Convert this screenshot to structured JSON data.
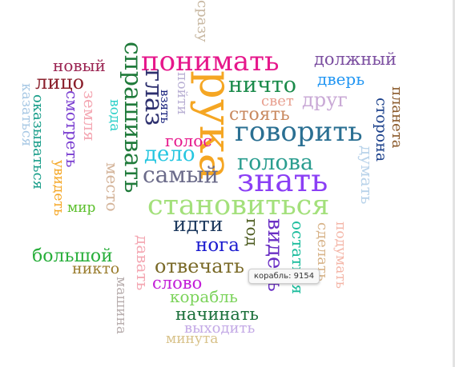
{
  "word_cloud": {
    "words": [
      {
        "text": "понимать",
        "color": "#e6178b",
        "orientation": "horizontal"
      },
      {
        "text": "рука",
        "color": "#f5a623",
        "orientation": "vertical"
      },
      {
        "text": "спрашивать",
        "color": "#1f7a3a",
        "orientation": "vertical"
      },
      {
        "text": "должный",
        "color": "#7b4ea0",
        "orientation": "horizontal"
      },
      {
        "text": "сразу",
        "color": "#c8b8a2",
        "orientation": "vertical"
      },
      {
        "text": "новый",
        "color": "#9b2452",
        "orientation": "horizontal"
      },
      {
        "text": "лицо",
        "color": "#8a1f2b",
        "orientation": "horizontal"
      },
      {
        "text": "казаться",
        "color": "#a7c8e4",
        "orientation": "vertical"
      },
      {
        "text": "оказываться",
        "color": "#1a9e8a",
        "orientation": "vertical"
      },
      {
        "text": "смотреть",
        "color": "#7b3fd1",
        "orientation": "vertical"
      },
      {
        "text": "земля",
        "color": "#f4a9b4",
        "orientation": "vertical"
      },
      {
        "text": "увидеть",
        "color": "#f5a623",
        "orientation": "vertical"
      },
      {
        "text": "глаз",
        "color": "#2c2f6e",
        "orientation": "vertical"
      },
      {
        "text": "вода",
        "color": "#2bd0c8",
        "orientation": "vertical"
      },
      {
        "text": "взять",
        "color": "#1a237e",
        "orientation": "vertical"
      },
      {
        "text": "пойти",
        "color": "#b9b0d4",
        "orientation": "vertical"
      },
      {
        "text": "ничто",
        "color": "#1a8a4a",
        "orientation": "horizontal"
      },
      {
        "text": "дверь",
        "color": "#2196f3",
        "orientation": "horizontal"
      },
      {
        "text": "свет",
        "color": "#e8a090",
        "orientation": "horizontal"
      },
      {
        "text": "друг",
        "color": "#c9a9d6",
        "orientation": "horizontal"
      },
      {
        "text": "стоять",
        "color": "#c98a60",
        "orientation": "horizontal"
      },
      {
        "text": "планета",
        "color": "#8b5a2b",
        "orientation": "vertical"
      },
      {
        "text": "сторона",
        "color": "#1a3f8a",
        "orientation": "vertical"
      },
      {
        "text": "голос",
        "color": "#e6178b",
        "orientation": "horizontal"
      },
      {
        "text": "говорить",
        "color": "#2a6f92",
        "orientation": "horizontal"
      },
      {
        "text": "думать",
        "color": "#b9d3ea",
        "orientation": "vertical"
      },
      {
        "text": "дело",
        "color": "#25c6e0",
        "orientation": "horizontal"
      },
      {
        "text": "голова",
        "color": "#2a9d8f",
        "orientation": "horizontal"
      },
      {
        "text": "самый",
        "color": "#6b6b8a",
        "orientation": "horizontal"
      },
      {
        "text": "знать",
        "color": "#8b3ff5",
        "orientation": "horizontal"
      },
      {
        "text": "место",
        "color": "#d4b49a",
        "orientation": "vertical"
      },
      {
        "text": "мир",
        "color": "#5bbf2b",
        "orientation": "horizontal"
      },
      {
        "text": "становиться",
        "color": "#a3e07b",
        "orientation": "horizontal"
      },
      {
        "text": "идти",
        "color": "#1e3a5f",
        "orientation": "horizontal"
      },
      {
        "text": "год",
        "color": "#4b5a1e",
        "orientation": "vertical"
      },
      {
        "text": "видеть",
        "color": "#6a2fc4",
        "orientation": "vertical"
      },
      {
        "text": "остаться",
        "color": "#1abc9c",
        "orientation": "vertical"
      },
      {
        "text": "сделать",
        "color": "#d8b48a",
        "orientation": "vertical"
      },
      {
        "text": "подумать",
        "color": "#f4b6a8",
        "orientation": "vertical"
      },
      {
        "text": "нога",
        "color": "#1a1acf",
        "orientation": "horizontal"
      },
      {
        "text": "большой",
        "color": "#27ae3a",
        "orientation": "horizontal"
      },
      {
        "text": "никто",
        "color": "#9a7d2e",
        "orientation": "horizontal"
      },
      {
        "text": "давать",
        "color": "#f4a9b4",
        "orientation": "vertical"
      },
      {
        "text": "машина",
        "color": "#b8aeae",
        "orientation": "vertical"
      },
      {
        "text": "отвечать",
        "color": "#7a6a28",
        "orientation": "horizontal"
      },
      {
        "text": "слово",
        "color": "#c21ed8",
        "orientation": "horizontal"
      },
      {
        "text": "корабль",
        "color": "#7bd35a",
        "orientation": "horizontal"
      },
      {
        "text": "начинать",
        "color": "#1a6f3a",
        "orientation": "horizontal"
      },
      {
        "text": "выходить",
        "color": "#c3a9e6",
        "orientation": "horizontal"
      },
      {
        "text": "минута",
        "color": "#d8c28a",
        "orientation": "horizontal"
      }
    ]
  },
  "tooltip": {
    "word": "корабль",
    "value": "9154",
    "text": "корабль: 9154"
  }
}
